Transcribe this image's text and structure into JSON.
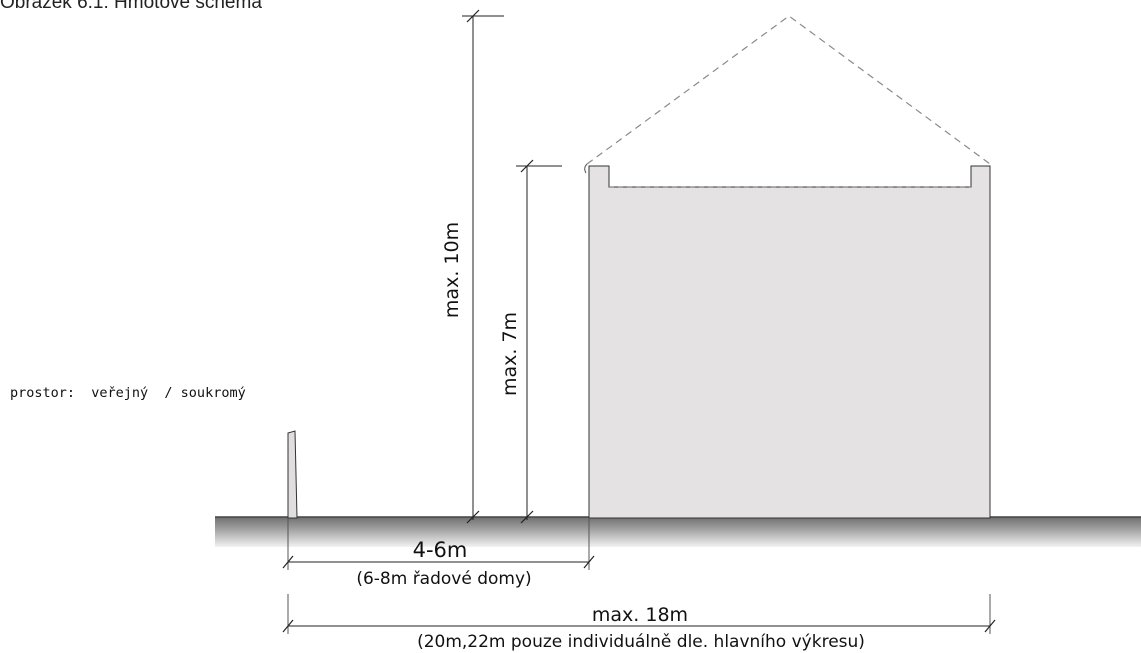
{
  "caption": "Obrázek 6.1: Hmotové schéma",
  "labels": {
    "max_height_total": "max. 10m",
    "max_height_eaves": "max. 7m",
    "space_type": "prostor:  veřejný  / soukromý",
    "setback": "4-6m",
    "setback_note": "(6-8m řadové domy)",
    "max_depth": "max. 18m",
    "max_depth_note": "(20m,22m pouze individuálně dle. hlavního výkresu)"
  },
  "colors": {
    "building_fill": "#e4e2e2",
    "ground_dark": "#6f6f6f",
    "ground_light": "#eeeeee",
    "line": "#222222",
    "roof_dash": "#8a8a8a"
  }
}
